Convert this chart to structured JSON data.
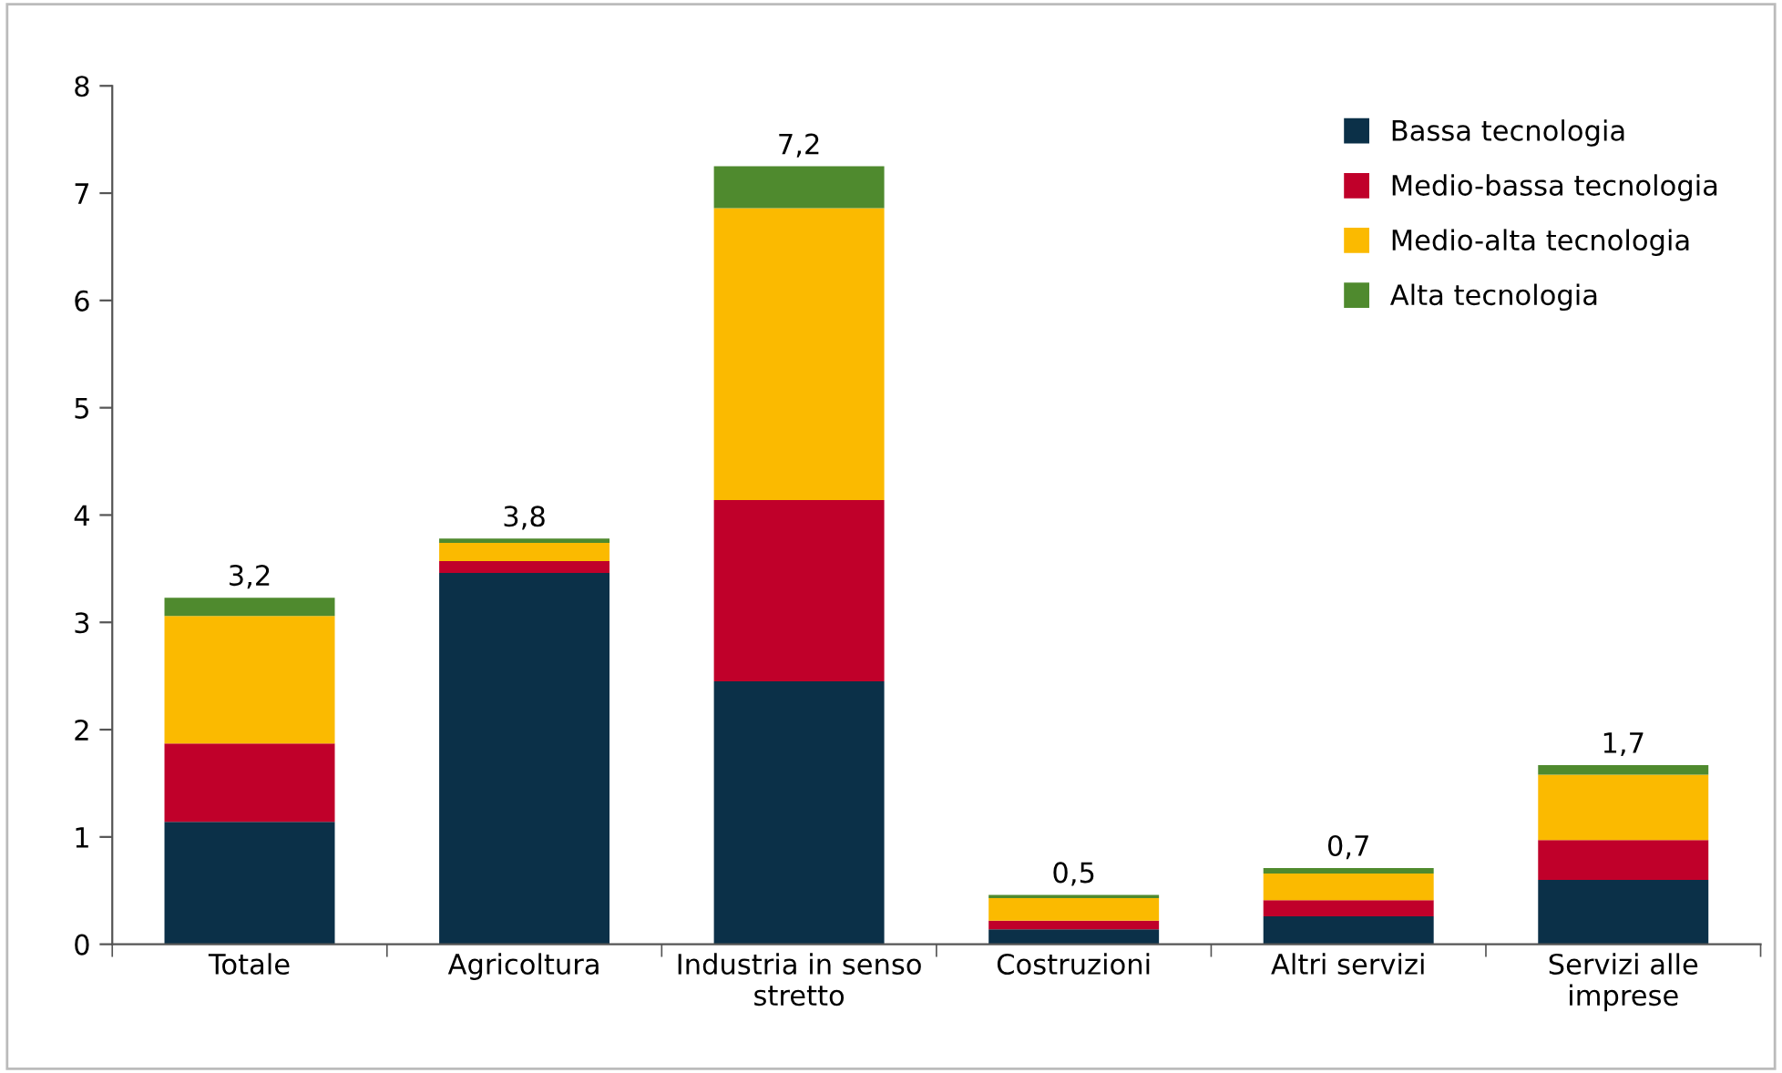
{
  "chart_data": {
    "type": "bar",
    "stacked": true,
    "categories": [
      "Totale",
      "Agricoltura",
      "Industria in senso stretto",
      "Costruzioni",
      "Altri servizi",
      "Servizi alle imprese"
    ],
    "series": [
      {
        "name": "Bassa tecnologia",
        "color": "#0b3048",
        "values": [
          1.14,
          3.46,
          2.45,
          0.14,
          0.26,
          0.6
        ]
      },
      {
        "name": "Medio-bassa tecnologia",
        "color": "#c0002a",
        "values": [
          0.73,
          0.11,
          1.69,
          0.08,
          0.15,
          0.37
        ]
      },
      {
        "name": "Medio-alta tecnologia",
        "color": "#fbba00",
        "values": [
          1.19,
          0.17,
          2.72,
          0.21,
          0.25,
          0.61
        ]
      },
      {
        "name": "Alta tecnologia",
        "color": "#4f8a2e",
        "values": [
          0.17,
          0.04,
          0.39,
          0.03,
          0.05,
          0.09
        ]
      }
    ],
    "totals": [
      "3,2",
      "3,8",
      "7,2",
      "0,5",
      "0,7",
      "1,7"
    ],
    "ylim": [
      0,
      8
    ],
    "yticks": [
      0,
      1,
      2,
      3,
      4,
      5,
      6,
      7,
      8
    ],
    "grid": false,
    "legend": "top right"
  }
}
